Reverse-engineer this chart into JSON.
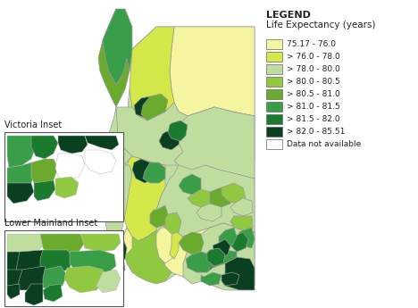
{
  "legend_title_line1": "LEGEND",
  "legend_title_line2": "Life Expectancy (years)",
  "legend_entries": [
    {
      "label": "75.17 - 76.0",
      "color": "#f5f5a0"
    },
    {
      "label": "> 76.0 - 78.0",
      "color": "#d4e84a"
    },
    {
      "label": "> 78.0 - 80.0",
      "color": "#c0dda0"
    },
    {
      "label": "> 80.0 - 80.5",
      "color": "#90c840"
    },
    {
      "label": "> 80.5 - 81.0",
      "color": "#6aab2e"
    },
    {
      "label": "> 81.0 - 81.5",
      "color": "#3a9e48"
    },
    {
      "label": "> 81.5 - 82.0",
      "color": "#1a7a2e"
    },
    {
      "label": "> 82.0 - 85.51",
      "color": "#0a4020"
    },
    {
      "label": "Data not available",
      "color": "#ffffff"
    }
  ],
  "inset_labels": [
    "Victoria Inset",
    "Lower Mainland Inset"
  ],
  "background_color": "#ffffff",
  "fig_width": 4.68,
  "fig_height": 3.45,
  "dpi": 100
}
